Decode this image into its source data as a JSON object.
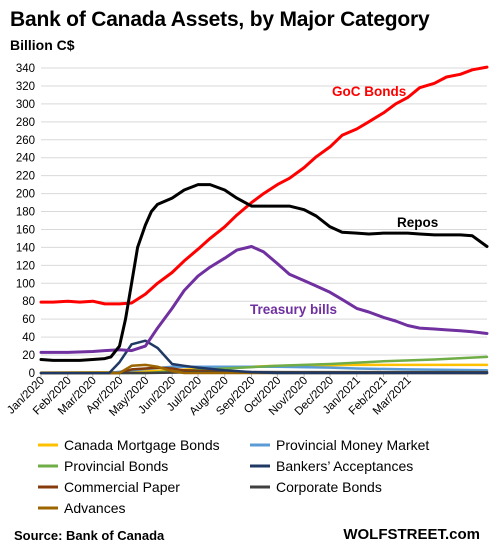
{
  "chart_data": {
    "type": "line",
    "title": "Bank of Canada  Assets, by Major Category",
    "ylabel": "Billion C$",
    "ylim": [
      0,
      340
    ],
    "yticks": [
      0,
      20,
      40,
      60,
      80,
      100,
      120,
      140,
      160,
      180,
      200,
      220,
      240,
      260,
      280,
      300,
      320,
      340
    ],
    "x_start": "2020-01-01",
    "x_end": "2021-03-31",
    "x_tick_labels": [
      "Jan/2020",
      "Feb/2020",
      "Mar/2020",
      "Apr/2020",
      "May/2020",
      "Jun/2020",
      "Jul/2020",
      "Aug/2020",
      "Sep/2020",
      "Oct/2020",
      "Nov/2020",
      "Dec/2020",
      "Jan/2021",
      "Feb/2021",
      "Mar/2021"
    ],
    "x_tick_dates": [
      "2020-01-01",
      "2020-02-01",
      "2020-03-01",
      "2020-04-01",
      "2020-05-01",
      "2020-06-01",
      "2020-07-01",
      "2020-08-01",
      "2020-09-01",
      "2020-10-01",
      "2020-11-01",
      "2020-12-01",
      "2021-01-01",
      "2021-02-01",
      "2021-03-01"
    ],
    "grid": true,
    "legend_position": "bottom",
    "series": [
      {
        "name": "GoC Bonds",
        "annotated": true,
        "color": "#ff0000",
        "label_color": "#ff0000",
        "points": [
          [
            "2020-01-01",
            79
          ],
          [
            "2020-01-15",
            79
          ],
          [
            "2020-02-01",
            80
          ],
          [
            "2020-02-15",
            79
          ],
          [
            "2020-03-01",
            80
          ],
          [
            "2020-03-15",
            77
          ],
          [
            "2020-04-01",
            77
          ],
          [
            "2020-04-15",
            78
          ],
          [
            "2020-05-01",
            88
          ],
          [
            "2020-05-15",
            100
          ],
          [
            "2020-06-01",
            112
          ],
          [
            "2020-06-15",
            125
          ],
          [
            "2020-07-01",
            138
          ],
          [
            "2020-07-15",
            150
          ],
          [
            "2020-08-01",
            163
          ],
          [
            "2020-08-15",
            176
          ],
          [
            "2020-09-01",
            190
          ],
          [
            "2020-09-15",
            200
          ],
          [
            "2020-10-01",
            210
          ],
          [
            "2020-10-15",
            217
          ],
          [
            "2020-11-01",
            229
          ],
          [
            "2020-11-15",
            241
          ],
          [
            "2020-12-01",
            252
          ],
          [
            "2020-12-15",
            265
          ],
          [
            "2021-01-01",
            272
          ],
          [
            "2021-01-15",
            280
          ],
          [
            "2021-02-01",
            290
          ],
          [
            "2021-02-15",
            300
          ],
          [
            "2021-03-01",
            307
          ],
          [
            "2021-03-15",
            318
          ],
          [
            "2021-04-01",
            323
          ],
          [
            "2021-04-15",
            330
          ],
          [
            "2021-05-01",
            333
          ],
          [
            "2021-05-15",
            338
          ],
          [
            "2021-06-01",
            341
          ]
        ]
      },
      {
        "name": "Repos",
        "annotated": true,
        "color": "#000000",
        "label_color": "#000000",
        "points": [
          [
            "2020-01-01",
            15
          ],
          [
            "2020-01-15",
            14
          ],
          [
            "2020-02-01",
            14
          ],
          [
            "2020-02-15",
            14
          ],
          [
            "2020-03-01",
            15
          ],
          [
            "2020-03-15",
            16
          ],
          [
            "2020-03-22",
            18
          ],
          [
            "2020-04-01",
            30
          ],
          [
            "2020-04-08",
            60
          ],
          [
            "2020-04-15",
            100
          ],
          [
            "2020-04-22",
            140
          ],
          [
            "2020-05-01",
            165
          ],
          [
            "2020-05-08",
            180
          ],
          [
            "2020-05-15",
            188
          ],
          [
            "2020-06-01",
            195
          ],
          [
            "2020-06-15",
            204
          ],
          [
            "2020-07-01",
            210
          ],
          [
            "2020-07-15",
            210
          ],
          [
            "2020-08-01",
            204
          ],
          [
            "2020-08-15",
            195
          ],
          [
            "2020-09-01",
            186
          ],
          [
            "2020-09-15",
            186
          ],
          [
            "2020-10-01",
            186
          ],
          [
            "2020-10-15",
            186
          ],
          [
            "2020-11-01",
            182
          ],
          [
            "2020-11-15",
            175
          ],
          [
            "2020-12-01",
            163
          ],
          [
            "2020-12-15",
            157
          ],
          [
            "2021-01-01",
            156
          ],
          [
            "2021-01-15",
            155
          ],
          [
            "2021-02-01",
            156
          ],
          [
            "2021-02-15",
            156
          ],
          [
            "2021-03-01",
            156
          ],
          [
            "2021-03-15",
            155
          ],
          [
            "2021-04-01",
            154
          ],
          [
            "2021-04-15",
            154
          ],
          [
            "2021-05-01",
            154
          ],
          [
            "2021-05-15",
            153
          ],
          [
            "2021-06-01",
            141
          ]
        ]
      },
      {
        "name": "Treasury bills",
        "annotated": true,
        "color": "#7030a0",
        "label_color": "#7030a0",
        "points": [
          [
            "2020-01-01",
            23
          ],
          [
            "2020-02-01",
            23
          ],
          [
            "2020-03-01",
            24
          ],
          [
            "2020-03-15",
            25
          ],
          [
            "2020-04-01",
            26
          ],
          [
            "2020-04-15",
            25
          ],
          [
            "2020-05-01",
            30
          ],
          [
            "2020-05-15",
            50
          ],
          [
            "2020-06-01",
            72
          ],
          [
            "2020-06-15",
            92
          ],
          [
            "2020-07-01",
            108
          ],
          [
            "2020-07-15",
            118
          ],
          [
            "2020-08-01",
            128
          ],
          [
            "2020-08-15",
            137
          ],
          [
            "2020-09-01",
            141
          ],
          [
            "2020-09-15",
            135
          ],
          [
            "2020-10-01",
            122
          ],
          [
            "2020-10-15",
            110
          ],
          [
            "2020-11-01",
            103
          ],
          [
            "2020-11-15",
            97
          ],
          [
            "2020-12-01",
            90
          ],
          [
            "2020-12-15",
            82
          ],
          [
            "2021-01-01",
            72
          ],
          [
            "2021-01-15",
            68
          ],
          [
            "2021-02-01",
            62
          ],
          [
            "2021-02-15",
            58
          ],
          [
            "2021-03-01",
            53
          ],
          [
            "2021-03-15",
            50
          ],
          [
            "2021-04-01",
            49
          ],
          [
            "2021-04-15",
            48
          ],
          [
            "2021-05-01",
            47
          ],
          [
            "2021-05-15",
            46
          ],
          [
            "2021-06-01",
            44
          ]
        ]
      },
      {
        "name": "Canada Mortgage Bonds",
        "color": "#ffc000",
        "points": [
          [
            "2020-01-01",
            0.5
          ],
          [
            "2020-04-01",
            1
          ],
          [
            "2020-06-01",
            3
          ],
          [
            "2020-08-01",
            6
          ],
          [
            "2020-10-01",
            8
          ],
          [
            "2021-01-01",
            9
          ],
          [
            "2021-06-01",
            9
          ]
        ]
      },
      {
        "name": "Provincial Money Market",
        "color": "#5b9bd5",
        "points": [
          [
            "2020-01-01",
            0
          ],
          [
            "2020-03-20",
            0
          ],
          [
            "2020-04-15",
            3
          ],
          [
            "2020-06-01",
            7
          ],
          [
            "2020-07-15",
            7
          ],
          [
            "2020-10-01",
            7
          ],
          [
            "2020-12-01",
            6
          ],
          [
            "2021-01-01",
            5
          ],
          [
            "2021-03-01",
            4
          ],
          [
            "2021-06-01",
            3
          ]
        ]
      },
      {
        "name": "Provincial Bonds",
        "color": "#70ad47",
        "points": [
          [
            "2020-01-01",
            0
          ],
          [
            "2020-05-01",
            0
          ],
          [
            "2020-06-01",
            2
          ],
          [
            "2020-08-01",
            5
          ],
          [
            "2020-10-01",
            8
          ],
          [
            "2020-12-01",
            10
          ],
          [
            "2021-02-01",
            13
          ],
          [
            "2021-04-01",
            15
          ],
          [
            "2021-06-01",
            18
          ]
        ]
      },
      {
        "name": "Bankers’ Acceptances",
        "color": "#203864",
        "points": [
          [
            "2020-01-01",
            0
          ],
          [
            "2020-03-20",
            0
          ],
          [
            "2020-04-01",
            12
          ],
          [
            "2020-04-15",
            32
          ],
          [
            "2020-05-01",
            36
          ],
          [
            "2020-05-15",
            28
          ],
          [
            "2020-06-01",
            10
          ],
          [
            "2020-06-15",
            8
          ],
          [
            "2020-07-01",
            6
          ],
          [
            "2020-08-01",
            3
          ],
          [
            "2020-09-01",
            1
          ],
          [
            "2020-10-01",
            0
          ],
          [
            "2021-06-01",
            0
          ]
        ]
      },
      {
        "name": "Commercial Paper",
        "color": "#843c0c",
        "points": [
          [
            "2020-01-01",
            0
          ],
          [
            "2020-04-01",
            0
          ],
          [
            "2020-04-15",
            4
          ],
          [
            "2020-05-01",
            5
          ],
          [
            "2020-05-15",
            6
          ],
          [
            "2020-06-01",
            5
          ],
          [
            "2020-06-15",
            3
          ],
          [
            "2020-07-15",
            2
          ],
          [
            "2020-09-01",
            1
          ],
          [
            "2021-06-01",
            0
          ]
        ]
      },
      {
        "name": "Corporate Bonds",
        "color": "#404040",
        "points": [
          [
            "2020-01-01",
            0
          ],
          [
            "2020-05-01",
            0
          ],
          [
            "2020-06-01",
            0.5
          ],
          [
            "2020-07-01",
            1
          ],
          [
            "2021-06-01",
            1
          ]
        ]
      },
      {
        "name": "Advances",
        "color": "#9c6500",
        "points": [
          [
            "2020-01-01",
            0
          ],
          [
            "2020-04-01",
            0
          ],
          [
            "2020-04-15",
            8
          ],
          [
            "2020-05-01",
            9
          ],
          [
            "2020-05-15",
            7
          ],
          [
            "2020-06-01",
            2
          ],
          [
            "2020-06-15",
            0
          ],
          [
            "2021-06-01",
            0
          ]
        ]
      }
    ]
  },
  "footer": {
    "source": "Source: Bank of Canada",
    "brand": "WOLFSTREET.com"
  }
}
